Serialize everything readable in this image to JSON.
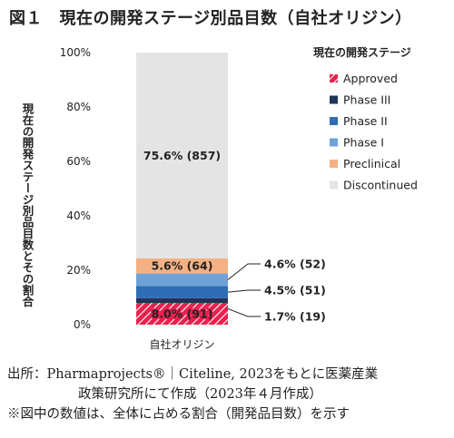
{
  "figure": {
    "title": "図１　現在の開発ステージ別品目数（自社オリジン）",
    "source_line1": "出所：Pharmaprojects®｜Citeline, 2023をもとに医薬産業",
    "source_line2": "政策研究所にて作成（2023年４月作成）",
    "note": "※図中の数値は、全体に占める割合（開発品目数）を示す"
  },
  "colors": {
    "Approved": "#e8224f",
    "Phase III": "#1d3557",
    "Phase II": "#2e6eb5",
    "Phase I": "#6ea1d8",
    "Preclinical": "#f4b183",
    "Discontinued": "#e4e4e4"
  },
  "chart_data": {
    "type": "bar",
    "stacked": true,
    "categories": [
      "自社オリジン"
    ],
    "ylabel": "現在の開発ステージ別品目数とその割合",
    "ylim": [
      0,
      100
    ],
    "yticks": [
      "0%",
      "20%",
      "40%",
      "60%",
      "80%",
      "100%"
    ],
    "legend_title": "現在の開発ステージ",
    "legend_position": "right",
    "series": [
      {
        "name": "Approved",
        "values": [
          8.0
        ],
        "label": "8.0% (91)",
        "label_position": "inside"
      },
      {
        "name": "Phase III",
        "values": [
          1.7
        ],
        "label": "1.7% (19)",
        "label_position": "callout"
      },
      {
        "name": "Phase II",
        "values": [
          4.5
        ],
        "label": "4.5% (51)",
        "label_position": "callout"
      },
      {
        "name": "Phase I",
        "values": [
          4.6
        ],
        "label": "4.6% (52)",
        "label_position": "callout"
      },
      {
        "name": "Preclinical",
        "values": [
          5.6
        ],
        "label": "5.6% (64)",
        "label_position": "inside"
      },
      {
        "name": "Discontinued",
        "values": [
          75.6
        ],
        "label": "75.6% (857)",
        "label_position": "inside"
      }
    ]
  }
}
